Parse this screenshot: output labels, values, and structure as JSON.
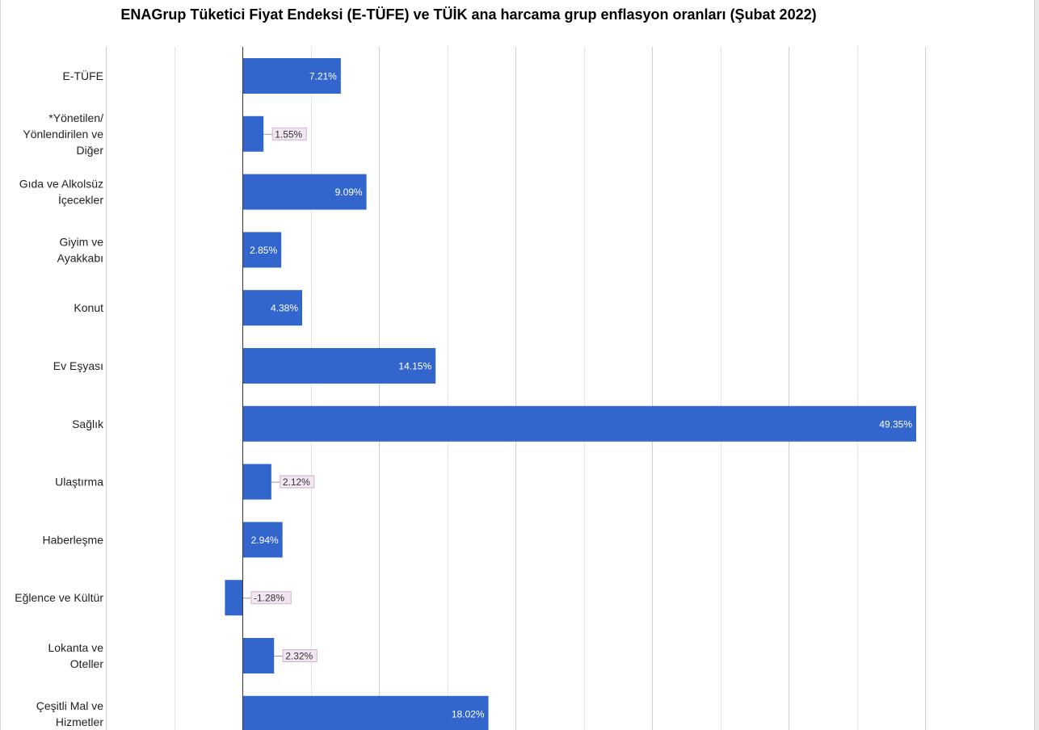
{
  "chart_data": {
    "type": "bar",
    "orientation": "horizontal",
    "title": "ENAGrup Tüketici Fiyat Endeksi (E-TÜFE) ve TÜİK ana harcama grup enflasyon oranları (Şubat 2022)",
    "categories": [
      "E-TÜFE",
      "*Yönetilen/ Yönlendirilen ve Diğer",
      "Gıda ve Alkolsüz İçecekler",
      "Giyim ve Ayakkabı",
      "Konut",
      "Ev Eşyası",
      "Sağlık",
      "Ulaştırma",
      "Haberleşme",
      "Eğlence ve Kültür",
      "Lokanta ve Oteller",
      "Çeşitli Mal ve Hizmetler"
    ],
    "category_lines": [
      [
        "E-TÜFE"
      ],
      [
        "*Yönetilen/",
        "Yönlendirilen ve",
        "Diğer"
      ],
      [
        "Gıda ve Alkolsüz",
        "İçecekler"
      ],
      [
        "Giyim ve",
        "Ayakkabı"
      ],
      [
        "Konut"
      ],
      [
        "Ev Eşyası"
      ],
      [
        "Sağlık"
      ],
      [
        "Ulaştırma"
      ],
      [
        "Haberleşme"
      ],
      [
        "Eğlence ve Kültür"
      ],
      [
        "Lokanta ve",
        "Oteller"
      ],
      [
        "Çeşitli Mal ve",
        "Hizmetler"
      ]
    ],
    "values": [
      7.21,
      1.55,
      9.09,
      2.85,
      4.38,
      14.15,
      49.35,
      2.12,
      2.94,
      -1.28,
      2.32,
      18.02
    ],
    "data_labels": [
      "7.21%",
      "1.55%",
      "9.09%",
      "2.85%",
      "4.38%",
      "14.15%",
      "49.35%",
      "2.12%",
      "2.94%",
      "-1.28%",
      "2.32%",
      "18.02%"
    ],
    "xlim": [
      -10,
      50
    ],
    "grid_step": 5,
    "grid": true,
    "legend": "none",
    "xlabel": "",
    "ylabel": "",
    "bar_color": "#3366cc",
    "inside_label_color": "#ffffff",
    "callout_bg": "#f3e6f3",
    "callout_border": "#cdb4cd",
    "callout_text_color": "#333333",
    "grid_color": "#d4d4d4",
    "axis_color": "#333333"
  }
}
